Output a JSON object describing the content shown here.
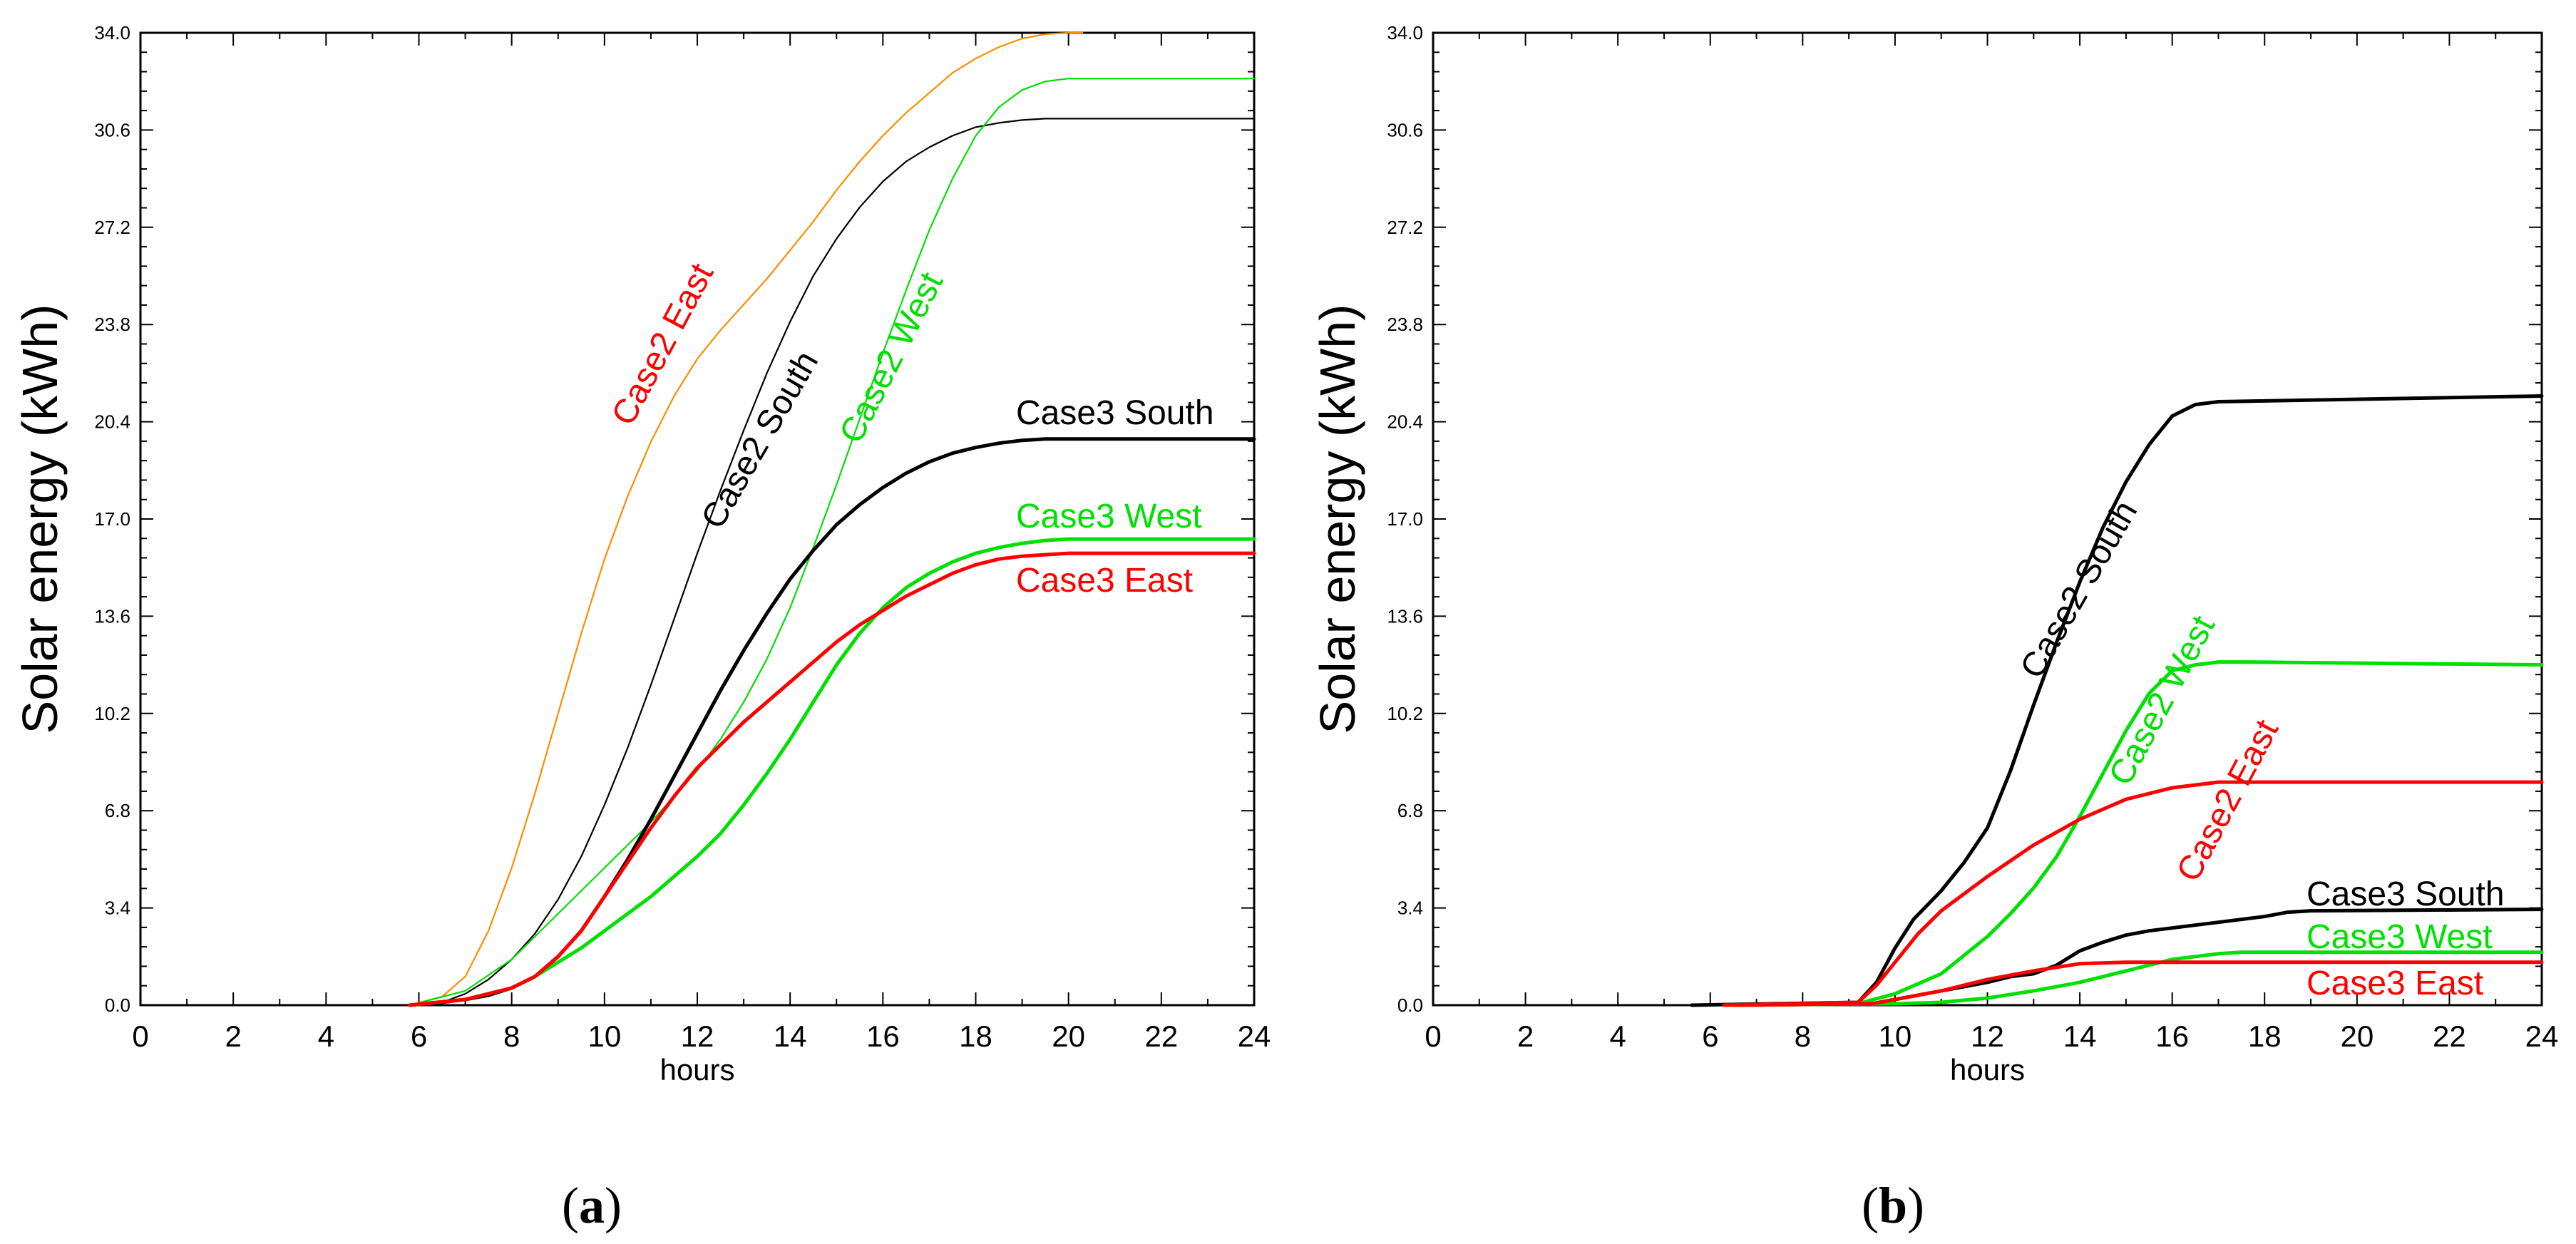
{
  "chart_data": [
    {
      "type": "line",
      "panel": "(a)",
      "panel_label": {
        "open": "(",
        "letter": "a",
        "close": ")"
      },
      "title": "",
      "xlabel": "hours",
      "ylabel": "Solar energy (kWh)",
      "xlim": [
        0,
        24
      ],
      "ylim": [
        0,
        34
      ],
      "x_ticks": [
        0,
        2,
        4,
        6,
        8,
        10,
        12,
        14,
        16,
        18,
        20,
        22,
        24
      ],
      "x_tick_labels": [
        "0",
        "2",
        "4",
        "6",
        "8",
        "10",
        "12",
        "14",
        "16",
        "18",
        "20",
        "22",
        "24"
      ],
      "y_ticks": [
        0.0,
        3.4,
        6.8,
        10.2,
        13.6,
        17.0,
        20.4,
        23.8,
        27.2,
        30.6,
        34.0
      ],
      "y_tick_labels": [
        "0.0",
        "3.4",
        "6.8",
        "10.2",
        "13.6",
        "17.0",
        "20.4",
        "23.8",
        "27.2",
        "30.6",
        "34.0"
      ],
      "series": [
        {
          "name": "Case2 East",
          "color": "#ff8c00",
          "label_color": "#ff0000",
          "width": "thin",
          "x": [
            5.8,
            6.5,
            7,
            7.5,
            8,
            8.5,
            9,
            9.5,
            10,
            10.5,
            11,
            11.5,
            12,
            12.5,
            13,
            13.5,
            14,
            14.5,
            15,
            15.5,
            16,
            16.5,
            17,
            17.5,
            18,
            18.5,
            19,
            19.5,
            20,
            20.3
          ],
          "y": [
            0,
            0.3,
            1.0,
            2.6,
            4.8,
            7.4,
            10.2,
            13.0,
            15.6,
            17.8,
            19.7,
            21.3,
            22.6,
            23.6,
            24.5,
            25.4,
            26.4,
            27.4,
            28.5,
            29.5,
            30.4,
            31.2,
            31.9,
            32.6,
            33.1,
            33.5,
            33.8,
            33.95,
            34.0,
            34.0
          ]
        },
        {
          "name": "Case2 South",
          "color": "#000000",
          "label_color": "#000000",
          "width": "thin",
          "x": [
            5.8,
            6.5,
            7,
            7.5,
            8,
            8.5,
            9,
            9.5,
            10,
            10.5,
            11,
            11.5,
            12,
            12.5,
            13,
            13.5,
            14,
            14.5,
            15,
            15.5,
            16,
            16.5,
            17,
            17.5,
            18,
            18.5,
            19,
            19.5,
            20,
            24
          ],
          "y": [
            0,
            0.1,
            0.4,
            0.9,
            1.6,
            2.5,
            3.7,
            5.2,
            7.0,
            9.0,
            11.2,
            13.5,
            15.8,
            18.0,
            20.1,
            22.1,
            23.9,
            25.5,
            26.8,
            27.9,
            28.8,
            29.5,
            30.0,
            30.4,
            30.7,
            30.85,
            30.95,
            31.0,
            31.0,
            31.0
          ]
        },
        {
          "name": "Case2 West",
          "color": "#00e000",
          "label_color": "#00e000",
          "width": "thin",
          "x": [
            5.8,
            7,
            8,
            9,
            10,
            11,
            12,
            12.5,
            13,
            13.5,
            14,
            14.5,
            15,
            15.5,
            16,
            16.5,
            17,
            17.5,
            18,
            18.5,
            19,
            19.5,
            20,
            24
          ],
          "y": [
            0,
            0.5,
            1.6,
            3.2,
            4.8,
            6.4,
            8.2,
            9.3,
            10.6,
            12.1,
            13.9,
            16.0,
            18.2,
            20.5,
            22.8,
            25.0,
            27.1,
            28.9,
            30.4,
            31.4,
            32.0,
            32.3,
            32.4,
            32.4
          ]
        },
        {
          "name": "Case3 South",
          "color": "#000000",
          "label_color": "#000000",
          "width": "thick",
          "x": [
            5.8,
            6.5,
            7,
            7.5,
            8,
            8.5,
            9,
            9.5,
            10,
            10.5,
            11,
            11.5,
            12,
            12.5,
            13,
            13.5,
            14,
            14.5,
            15,
            15.5,
            16,
            16.5,
            17,
            17.5,
            18,
            18.5,
            19,
            19.5,
            20,
            24
          ],
          "y": [
            0,
            0.1,
            0.2,
            0.35,
            0.6,
            1.0,
            1.7,
            2.6,
            3.8,
            5.1,
            6.5,
            8.0,
            9.5,
            11.0,
            12.4,
            13.7,
            14.9,
            15.9,
            16.8,
            17.5,
            18.1,
            18.6,
            19.0,
            19.3,
            19.5,
            19.65,
            19.75,
            19.8,
            19.8,
            19.8
          ]
        },
        {
          "name": "Case3 West",
          "color": "#00e000",
          "label_color": "#00e000",
          "width": "thick",
          "x": [
            5.8,
            7,
            8,
            8.5,
            9,
            9.5,
            10,
            11,
            12,
            12.5,
            13,
            13.5,
            14,
            14.5,
            15,
            15.5,
            16,
            16.5,
            17,
            17.5,
            18,
            18.5,
            19,
            19.5,
            20,
            24
          ],
          "y": [
            0,
            0.2,
            0.6,
            1.0,
            1.5,
            2.0,
            2.6,
            3.8,
            5.2,
            6.0,
            7.0,
            8.1,
            9.3,
            10.6,
            11.9,
            13.0,
            13.9,
            14.6,
            15.1,
            15.5,
            15.8,
            16.0,
            16.15,
            16.25,
            16.3,
            16.3
          ]
        },
        {
          "name": "Case3 East",
          "color": "#ff0000",
          "label_color": "#ff0000",
          "width": "thick",
          "x": [
            5.8,
            7,
            8,
            8.5,
            9,
            9.5,
            10,
            10.5,
            11,
            11.5,
            12,
            12.5,
            13,
            13.5,
            14,
            14.5,
            15,
            15.5,
            16,
            16.5,
            17,
            17.5,
            18,
            18.5,
            19,
            19.5,
            20,
            24
          ],
          "y": [
            0,
            0.2,
            0.6,
            1.0,
            1.7,
            2.6,
            3.8,
            5.0,
            6.2,
            7.3,
            8.3,
            9.1,
            9.9,
            10.6,
            11.3,
            12.0,
            12.7,
            13.3,
            13.8,
            14.3,
            14.7,
            15.1,
            15.4,
            15.6,
            15.7,
            15.75,
            15.8,
            15.8
          ]
        }
      ]
    },
    {
      "type": "line",
      "panel": "(b)",
      "panel_label": {
        "open": "(",
        "letter": "b",
        "close": ")"
      },
      "title": "",
      "xlabel": "hours",
      "ylabel": "Solar energy (kWh)",
      "xlim": [
        0,
        24
      ],
      "ylim": [
        0,
        34
      ],
      "x_ticks": [
        0,
        2,
        4,
        6,
        8,
        10,
        12,
        14,
        16,
        18,
        20,
        22,
        24
      ],
      "x_tick_labels": [
        "0",
        "2",
        "4",
        "6",
        "8",
        "10",
        "12",
        "14",
        "16",
        "18",
        "20",
        "22",
        "24"
      ],
      "y_ticks": [
        0.0,
        3.4,
        6.8,
        10.2,
        13.6,
        17.0,
        20.4,
        23.8,
        27.2,
        30.6,
        34.0
      ],
      "y_tick_labels": [
        "0.0",
        "3.4",
        "6.8",
        "10.2",
        "13.6",
        "17.0",
        "20.4",
        "23.8",
        "27.2",
        "30.6",
        "34.0"
      ],
      "series": [
        {
          "name": "Case2 South",
          "color": "#000000",
          "label_color": "#000000",
          "width": "thick",
          "x": [
            5.6,
            9.2,
            9.6,
            10,
            10.4,
            11,
            11.5,
            12,
            12.5,
            13,
            13.5,
            14,
            14.5,
            15,
            15.5,
            16,
            16.5,
            17,
            24
          ],
          "y": [
            0,
            0.1,
            0.8,
            2.0,
            3.0,
            4.0,
            5.0,
            6.2,
            8.2,
            10.5,
            12.7,
            14.8,
            16.7,
            18.3,
            19.6,
            20.6,
            21.0,
            21.1,
            21.3
          ]
        },
        {
          "name": "Case2 West",
          "color": "#00e000",
          "label_color": "#00e000",
          "width": "thick",
          "x": [
            6.3,
            9.3,
            10,
            11,
            12,
            12.5,
            13,
            13.5,
            14,
            14.5,
            15,
            15.5,
            16,
            16.5,
            17,
            17.5,
            24
          ],
          "y": [
            0,
            0.1,
            0.4,
            1.1,
            2.4,
            3.2,
            4.1,
            5.2,
            6.6,
            8.1,
            9.6,
            10.9,
            11.7,
            11.9,
            12.0,
            12.0,
            11.9
          ]
        },
        {
          "name": "Case2 East",
          "color": "#ff0000",
          "label_color": "#ff0000",
          "width": "thick",
          "x": [
            6.3,
            9.2,
            9.6,
            10.5,
            11,
            12,
            13,
            14,
            15,
            16,
            17,
            24
          ],
          "y": [
            0,
            0.1,
            0.7,
            2.5,
            3.3,
            4.5,
            5.6,
            6.5,
            7.2,
            7.6,
            7.8,
            7.8
          ]
        },
        {
          "name": "Case3 South",
          "color": "#000000",
          "label_color": "#000000",
          "width": "thick",
          "x": [
            6.5,
            9.5,
            10,
            11,
            12,
            12.5,
            13,
            13.5,
            14,
            14.5,
            15,
            15.5,
            16,
            17,
            18,
            18.5,
            19,
            24
          ],
          "y": [
            0,
            0.05,
            0.2,
            0.5,
            0.8,
            1.0,
            1.1,
            1.4,
            1.9,
            2.2,
            2.45,
            2.6,
            2.7,
            2.9,
            3.1,
            3.25,
            3.3,
            3.35
          ]
        },
        {
          "name": "Case3 West",
          "color": "#00e000",
          "label_color": "#00e000",
          "width": "thick",
          "x": [
            6.5,
            10,
            11,
            12,
            13,
            14,
            15,
            16,
            17,
            17.5,
            18,
            24
          ],
          "y": [
            0,
            0.05,
            0.1,
            0.25,
            0.5,
            0.8,
            1.2,
            1.6,
            1.8,
            1.85,
            1.85,
            1.85
          ]
        },
        {
          "name": "Case3 East",
          "color": "#ff0000",
          "label_color": "#ff0000",
          "width": "thick",
          "x": [
            6.5,
            9.5,
            10,
            11,
            12,
            13,
            14,
            15,
            16,
            17,
            24
          ],
          "y": [
            0,
            0.05,
            0.2,
            0.5,
            0.9,
            1.2,
            1.45,
            1.5,
            1.5,
            1.5,
            1.5
          ]
        }
      ]
    }
  ]
}
